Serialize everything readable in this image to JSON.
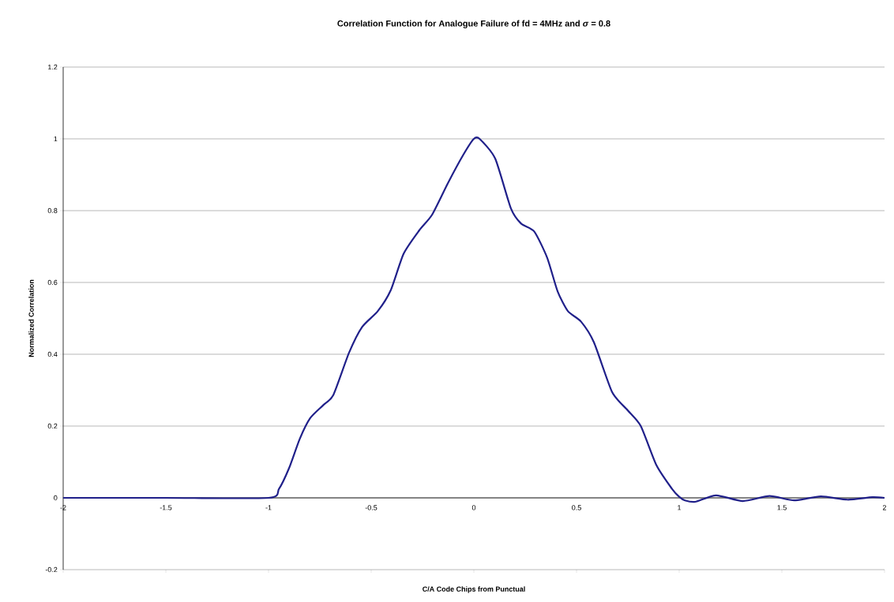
{
  "chart_data": {
    "type": "line",
    "title": "Correlation Function for Analogue Failure of fd = 4MHz and *σ* = 0.8",
    "xlabel": "C/A Code Chips from Punctual",
    "ylabel": "Normalized Correlation",
    "xlim": [
      -2,
      2
    ],
    "ylim": [
      -0.2,
      1.2
    ],
    "xticks": [
      -2,
      -1.5,
      -1,
      -0.5,
      0,
      0.5,
      1,
      1.5,
      2
    ],
    "yticks": [
      -0.2,
      0,
      0.2,
      0.4,
      0.6,
      0.8,
      1,
      1.2
    ],
    "grid": "y",
    "marker": "none",
    "line_style": "solid",
    "series": [
      {
        "color": "#20208a",
        "x": [
          -2,
          -1.5,
          -1,
          -0.949,
          -0.899,
          -0.848,
          -0.797,
          -0.734,
          -0.684,
          -0.608,
          -0.544,
          -0.468,
          -0.405,
          -0.342,
          -0.266,
          -0.203,
          -0.127,
          -0.051,
          0,
          0.028,
          0.104,
          0.18,
          0.23,
          0.294,
          0.357,
          0.408,
          0.458,
          0.522,
          0.585,
          0.673,
          0.749,
          0.813,
          0.889,
          0.965,
          1,
          1.028,
          1.078,
          1.18,
          1.31,
          1.44,
          1.56,
          1.69,
          1.82,
          1.94,
          2
        ],
        "values": [
          0,
          0,
          0,
          0.025,
          0.084,
          0.164,
          0.222,
          0.258,
          0.287,
          0.404,
          0.476,
          0.52,
          0.578,
          0.68,
          0.745,
          0.789,
          0.876,
          0.956,
          1.0,
          1.0,
          0.945,
          0.807,
          0.764,
          0.742,
          0.669,
          0.575,
          0.52,
          0.491,
          0.433,
          0.295,
          0.244,
          0.2,
          0.091,
          0.025,
          0.003,
          -0.007,
          -0.011,
          0.007,
          -0.009,
          0.005,
          -0.007,
          0.004,
          -0.005,
          0.002,
          0
        ]
      }
    ]
  }
}
